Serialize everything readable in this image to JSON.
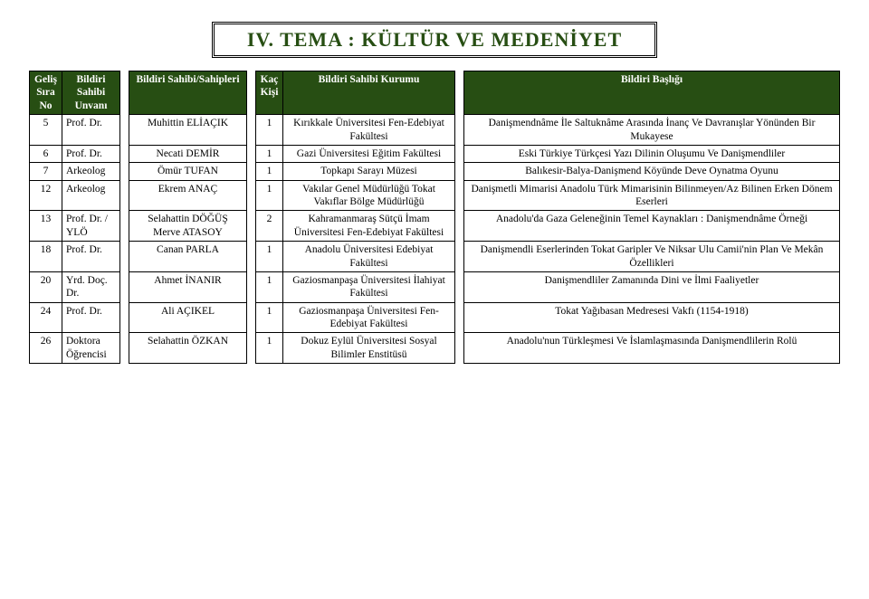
{
  "title": "IV. TEMA : KÜLTÜR VE MEDENİYET",
  "headers": {
    "no": "Geliş Sıra No",
    "unvan": "Bildiri Sahibi Unvanı",
    "sahipler": "Bildiri Sahibi/Sahipleri",
    "kisi": "Kaç Kişi",
    "kurum": "Bildiri Sahibi Kurumu",
    "baslik": "Bildiri Başlığı"
  },
  "rows": [
    {
      "no": "5",
      "unvan": "Prof. Dr.",
      "sahipler": "Muhittin ELİAÇIK",
      "kisi": "1",
      "kurum": "Kırıkkale Üniversitesi Fen-Edebiyat Fakültesi",
      "baslik": "Danişmendnâme İle Saltuknâme Arasında İnanç Ve Davranışlar Yönünden Bir Mukayese"
    },
    {
      "no": "6",
      "unvan": "Prof. Dr.",
      "sahipler": "Necati DEMİR",
      "kisi": "1",
      "kurum": "Gazi Üniversitesi Eğitim Fakültesi",
      "baslik": "Eski Türkiye Türkçesi Yazı Dilinin Oluşumu Ve Danişmendliler"
    },
    {
      "no": "7",
      "unvan": "Arkeolog",
      "sahipler": "Ömür TUFAN",
      "kisi": "1",
      "kurum": "Topkapı Sarayı Müzesi",
      "baslik": "Balıkesir-Balya-Danişmend Köyünde Deve Oynatma Oyunu"
    },
    {
      "no": "12",
      "unvan": "Arkeolog",
      "sahipler": "Ekrem ANAÇ",
      "kisi": "1",
      "kurum": "Vakılar Genel Müdürlüğü Tokat Vakıflar Bölge Müdürlüğü",
      "baslik": "Danişmetli Mimarisi Anadolu Türk Mimarisinin Bilinmeyen/Az Bilinen Erken Dönem Eserleri"
    },
    {
      "no": "13",
      "unvan": "Prof. Dr. / YLÖ",
      "sahipler": "Selahattin DÖĞÜŞ Merve ATASOY",
      "kisi": "2",
      "kurum": "Kahramanmaraş Sütçü İmam Üniversitesi Fen-Edebiyat Fakültesi",
      "baslik": "Anadolu'da Gaza Geleneğinin Temel Kaynakları : Danişmendnâme Örneği"
    },
    {
      "no": "18",
      "unvan": "Prof. Dr.",
      "sahipler": "Canan PARLA",
      "kisi": "1",
      "kurum": "Anadolu Üniversitesi Edebiyat Fakültesi",
      "baslik": "Danişmendli Eserlerinden Tokat Garipler Ve Niksar Ulu Camii'nin Plan Ve Mekân Özellikleri"
    },
    {
      "no": "20",
      "unvan": "Yrd. Doç. Dr.",
      "sahipler": "Ahmet İNANIR",
      "kisi": "1",
      "kurum": "Gaziosmanpaşa Üniversitesi İlahiyat Fakültesi",
      "baslik": "Danişmendliler Zamanında Dini ve İlmi Faaliyetler"
    },
    {
      "no": "24",
      "unvan": "Prof. Dr.",
      "sahipler": "Ali AÇIKEL",
      "kisi": "1",
      "kurum": "Gaziosmanpaşa Üniversitesi Fen-Edebiyat Fakültesi",
      "baslik": "Tokat Yağıbasan Medresesi Vakfı (1154-1918)"
    },
    {
      "no": "26",
      "unvan": "Doktora Öğrencisi",
      "sahipler": "Selahattin ÖZKAN",
      "kisi": "1",
      "kurum": "Dokuz Eylül Üniversitesi Sosyal Bilimler Enstitüsü",
      "baslik": "Anadolu'nun Türkleşmesi Ve İslamlaşmasında Danişmendlilerin Rolü"
    }
  ]
}
